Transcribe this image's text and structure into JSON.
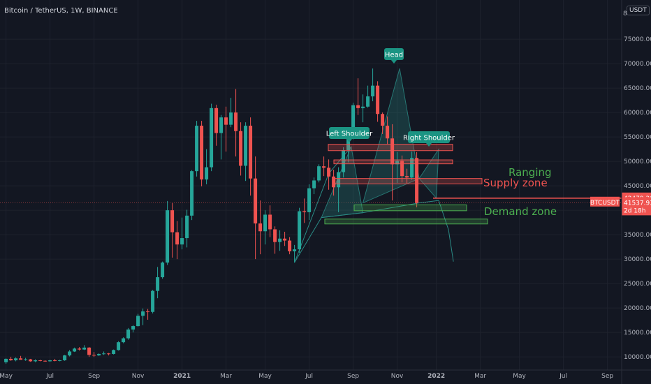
{
  "symbol": {
    "title": "Bitcoin / TetherUS, 1W, BINANCE",
    "currency": "USDT"
  },
  "colors": {
    "background": "#131722",
    "up": "#26a69a",
    "down": "#ef5350",
    "grid": "#1e222d",
    "teal_label": "#1b9483",
    "pattern": "#2a8b85",
    "supply": "#ef5350",
    "demand": "#4caf50"
  },
  "chart_data": {
    "type": "candlestick",
    "title": "Bitcoin / TetherUS, 1W, BINANCE",
    "ylim": [
      5000,
      80000
    ],
    "y_ticks": [
      10000,
      15000,
      20000,
      25000,
      30000,
      35000,
      40000,
      45000,
      50000,
      55000,
      60000,
      65000,
      70000,
      75000
    ],
    "y_tick_labels": [
      "10000.00",
      "15000.00",
      "20000.00",
      "25000.00",
      "30000.00",
      "35000.00",
      "40000.00",
      "45000.00",
      "50000.00",
      "55000.00",
      "60000.00",
      "65000.00",
      "70000.00",
      "75000.00"
    ],
    "x_ticks": [
      {
        "label": "May",
        "idx": 0
      },
      {
        "label": "Jul",
        "idx": 9
      },
      {
        "label": "Sep",
        "idx": 18
      },
      {
        "label": "Nov",
        "idx": 27
      },
      {
        "label": "2021",
        "idx": 36
      },
      {
        "label": "Mar",
        "idx": 45
      },
      {
        "label": "May",
        "idx": 53
      },
      {
        "label": "Jul",
        "idx": 62
      },
      {
        "label": "Sep",
        "idx": 71
      },
      {
        "label": "Nov",
        "idx": 80
      },
      {
        "label": "2022",
        "idx": 88
      },
      {
        "label": "Mar",
        "idx": 97
      },
      {
        "label": "May",
        "idx": 105
      },
      {
        "label": "Jul",
        "idx": 114
      },
      {
        "label": "Sep",
        "idx": 123
      }
    ],
    "candles": [
      [
        8900,
        9700,
        8600,
        9600
      ],
      [
        9600,
        10000,
        9200,
        9300
      ],
      [
        9300,
        9900,
        9100,
        9700
      ],
      [
        9700,
        10200,
        9500,
        9400
      ],
      [
        9400,
        9800,
        9200,
        9500
      ],
      [
        9500,
        9600,
        9000,
        9100
      ],
      [
        9100,
        9500,
        8900,
        9300
      ],
      [
        9300,
        9400,
        9100,
        9200
      ],
      [
        9200,
        9300,
        9000,
        9100
      ],
      [
        9100,
        9400,
        9000,
        9300
      ],
      [
        9300,
        9600,
        9100,
        9200
      ],
      [
        9200,
        9400,
        9100,
        9300
      ],
      [
        9300,
        10400,
        9200,
        10300
      ],
      [
        10300,
        11400,
        10100,
        11100
      ],
      [
        11100,
        11900,
        11000,
        11700
      ],
      [
        11700,
        12000,
        11300,
        11500
      ],
      [
        11500,
        12400,
        11400,
        11900
      ],
      [
        11900,
        12000,
        10000,
        10400
      ],
      [
        10400,
        11000,
        10000,
        10300
      ],
      [
        10300,
        10700,
        10200,
        10600
      ],
      [
        10600,
        11100,
        10400,
        10700
      ],
      [
        10700,
        10800,
        10300,
        10600
      ],
      [
        10600,
        11500,
        10500,
        11400
      ],
      [
        11400,
        13200,
        11300,
        13000
      ],
      [
        13000,
        14000,
        12800,
        13800
      ],
      [
        13800,
        15900,
        13500,
        15600
      ],
      [
        15600,
        16500,
        15000,
        16300
      ],
      [
        16300,
        18800,
        16200,
        18400
      ],
      [
        18400,
        19900,
        16500,
        19300
      ],
      [
        19300,
        19800,
        17600,
        19200
      ],
      [
        19200,
        23700,
        18900,
        23500
      ],
      [
        23500,
        28400,
        22000,
        26300
      ],
      [
        26300,
        29500,
        26000,
        29300
      ],
      [
        29300,
        41900,
        28800,
        40000
      ],
      [
        40000,
        41500,
        30300,
        35500
      ],
      [
        35500,
        37800,
        30000,
        33000
      ],
      [
        33000,
        38500,
        32000,
        34300
      ],
      [
        34300,
        40100,
        32400,
        38900
      ],
      [
        38900,
        48200,
        38000,
        48000
      ],
      [
        48000,
        58300,
        46900,
        57300
      ],
      [
        57300,
        58300,
        44900,
        46300
      ],
      [
        46300,
        52500,
        45300,
        48800
      ],
      [
        48800,
        61800,
        48000,
        60900
      ],
      [
        60900,
        61600,
        53200,
        55800
      ],
      [
        55800,
        59500,
        50400,
        59000
      ],
      [
        59000,
        61200,
        52000,
        57500
      ],
      [
        57500,
        63000,
        57000,
        60000
      ],
      [
        60000,
        64800,
        51000,
        56200
      ],
      [
        56200,
        58000,
        47100,
        49100
      ],
      [
        49100,
        58000,
        46000,
        57300
      ],
      [
        57300,
        59000,
        43000,
        46500
      ],
      [
        46500,
        51000,
        30000,
        37300
      ],
      [
        37300,
        42000,
        31000,
        35700
      ],
      [
        35700,
        40000,
        33000,
        39100
      ],
      [
        39100,
        41000,
        34500,
        36100
      ],
      [
        36100,
        36700,
        31100,
        33500
      ],
      [
        33500,
        35900,
        31700,
        34200
      ],
      [
        34200,
        35600,
        32700,
        33800
      ],
      [
        33800,
        34500,
        31000,
        31600
      ],
      [
        31600,
        32900,
        29300,
        32000
      ],
      [
        32000,
        40500,
        31300,
        39800
      ],
      [
        39800,
        42400,
        37400,
        39600
      ],
      [
        39600,
        45300,
        38000,
        44500
      ],
      [
        44500,
        46700,
        43300,
        46100
      ],
      [
        46100,
        49400,
        45700,
        49000
      ],
      [
        49000,
        51000,
        47000,
        48700
      ],
      [
        48700,
        50400,
        44200,
        46900
      ],
      [
        46900,
        48300,
        43000,
        44700
      ],
      [
        44700,
        48800,
        39600,
        47800
      ],
      [
        47800,
        52900,
        46700,
        52300
      ],
      [
        52300,
        56000,
        49800,
        55900
      ],
      [
        55900,
        62000,
        54500,
        61500
      ],
      [
        61500,
        67000,
        59500,
        60900
      ],
      [
        60900,
        63700,
        58000,
        61200
      ],
      [
        61200,
        65500,
        61000,
        63300
      ],
      [
        63300,
        69000,
        62300,
        65500
      ],
      [
        65500,
        66400,
        58100,
        59700
      ],
      [
        59700,
        60000,
        55600,
        57300
      ],
      [
        57300,
        59200,
        53500,
        54700
      ],
      [
        54700,
        57600,
        42000,
        49400
      ],
      [
        49400,
        51900,
        45600,
        50100
      ],
      [
        50100,
        51200,
        45700,
        47000
      ],
      [
        47000,
        48500,
        45500,
        46700
      ],
      [
        46700,
        52000,
        46200,
        50700
      ],
      [
        50700,
        51900,
        40600,
        41500
      ]
    ],
    "annotations": {
      "labels": [
        "Head",
        "Left Shoulder",
        "Right Shoulder",
        "Ranging",
        "Supply zone",
        "Demand zone"
      ],
      "supply_boxes": [
        [
          52200,
          53500
        ],
        [
          49500,
          50300
        ],
        [
          45400,
          46500
        ]
      ],
      "demand_boxes": [
        [
          39900,
          41100
        ],
        [
          37200,
          38200
        ]
      ],
      "horizontal_line": 42479.2
    },
    "price_labels": [
      {
        "text": "42479.20",
        "price": 42479.2,
        "color": "#ef5350"
      },
      {
        "text": "41537.93",
        "price": 41537.93,
        "color": "#ef5350"
      },
      {
        "text": "2d 18h",
        "price": 40000,
        "color": "#ef5350"
      }
    ],
    "ticker_tag": "BTCUSDT",
    "top_axis_label": "8"
  }
}
